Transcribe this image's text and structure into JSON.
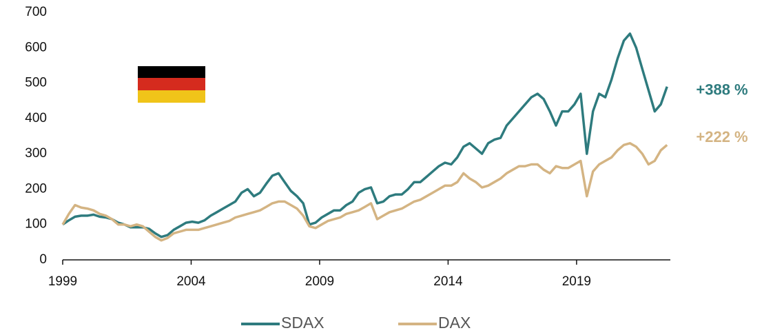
{
  "chart_data": {
    "type": "line",
    "x": [
      1999,
      1999.24,
      1999.48,
      1999.72,
      1999.96,
      2000.2,
      2000.44,
      2000.68,
      2000.92,
      2001.16,
      2001.4,
      2001.64,
      2001.88,
      2002.12,
      2002.36,
      2002.6,
      2002.84,
      2003.08,
      2003.32,
      2003.56,
      2003.8,
      2004.04,
      2004.28,
      2004.52,
      2004.76,
      2005,
      2005.24,
      2005.48,
      2005.72,
      2005.96,
      2006.2,
      2006.44,
      2006.68,
      2006.92,
      2007.16,
      2007.4,
      2007.64,
      2007.88,
      2008.12,
      2008.36,
      2008.6,
      2008.84,
      2009.08,
      2009.32,
      2009.56,
      2009.8,
      2010.04,
      2010.28,
      2010.52,
      2010.76,
      2011,
      2011.24,
      2011.48,
      2011.72,
      2011.96,
      2012.2,
      2012.44,
      2012.68,
      2012.92,
      2013.16,
      2013.4,
      2013.64,
      2013.88,
      2014.12,
      2014.36,
      2014.6,
      2014.84,
      2015.08,
      2015.32,
      2015.56,
      2015.8,
      2016.04,
      2016.28,
      2016.52,
      2016.76,
      2017,
      2017.24,
      2017.48,
      2017.72,
      2017.96,
      2018.2,
      2018.44,
      2018.68,
      2018.92,
      2019.16,
      2019.4,
      2019.64,
      2019.88,
      2020.12,
      2020.36,
      2020.6,
      2020.84,
      2021.08,
      2021.32,
      2021.56,
      2021.8,
      2022.04,
      2022.28,
      2022.52
    ],
    "series": [
      {
        "name": "SDAX",
        "color": "#2e7b7e",
        "values": [
          100,
          112,
          122,
          125,
          125,
          128,
          122,
          120,
          115,
          105,
          100,
          92,
          92,
          92,
          88,
          75,
          65,
          70,
          85,
          95,
          105,
          108,
          105,
          112,
          125,
          135,
          145,
          155,
          165,
          190,
          200,
          180,
          190,
          215,
          238,
          245,
          220,
          195,
          180,
          160,
          100,
          105,
          120,
          130,
          140,
          140,
          155,
          165,
          190,
          200,
          205,
          160,
          165,
          180,
          185,
          185,
          200,
          220,
          220,
          235,
          250,
          265,
          275,
          270,
          290,
          320,
          330,
          315,
          300,
          330,
          340,
          345,
          380,
          400,
          420,
          440,
          460,
          470,
          455,
          420,
          380,
          420,
          420,
          440,
          470,
          300,
          420,
          470,
          460,
          510,
          570,
          620,
          640,
          600,
          540,
          480,
          420,
          440,
          490
        ]
      },
      {
        "name": "DAX",
        "color": "#d4b483",
        "values": [
          100,
          130,
          155,
          148,
          145,
          140,
          130,
          125,
          115,
          100,
          100,
          95,
          100,
          95,
          80,
          65,
          55,
          62,
          75,
          80,
          85,
          85,
          85,
          90,
          95,
          100,
          105,
          110,
          120,
          125,
          130,
          135,
          140,
          150,
          160,
          165,
          165,
          155,
          145,
          125,
          95,
          90,
          100,
          110,
          115,
          120,
          130,
          135,
          140,
          150,
          160,
          115,
          125,
          135,
          140,
          145,
          155,
          165,
          170,
          180,
          190,
          200,
          210,
          210,
          220,
          245,
          230,
          220,
          205,
          210,
          220,
          230,
          245,
          255,
          265,
          265,
          270,
          270,
          255,
          245,
          265,
          260,
          260,
          270,
          280,
          180,
          250,
          270,
          280,
          290,
          310,
          325,
          330,
          320,
          300,
          270,
          280,
          310,
          325
        ]
      }
    ],
    "annotations": [
      "+388 %",
      "+222 %"
    ],
    "xlim": [
      1999,
      2022.65
    ],
    "xticks": [
      1999,
      2004,
      2009,
      2014,
      2019
    ],
    "ylim": [
      0,
      700
    ],
    "yticks": [
      0,
      100,
      200,
      300,
      400,
      500,
      600,
      700
    ],
    "grid": false,
    "legend": "bottom"
  }
}
